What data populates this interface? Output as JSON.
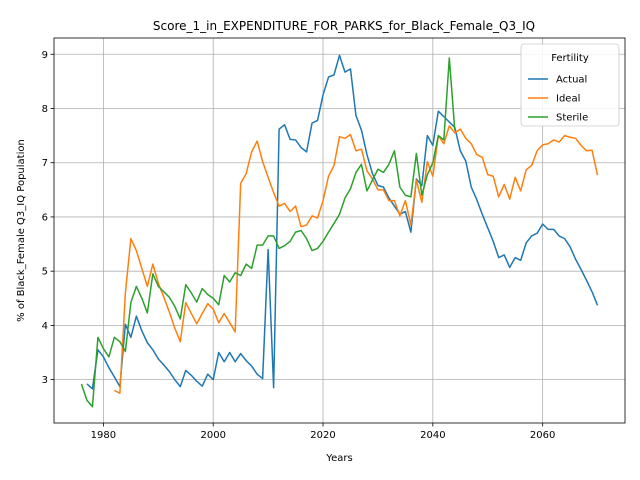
{
  "chart_data": {
    "type": "line",
    "title": "Score_1_in_EXPENDITURE_FOR_PARKS_for_Black_Female_Q3_IQ",
    "xlabel": "Years",
    "ylabel": "% of Black_Female Q3_IQ Population",
    "xlim": [
      1971,
      2075
    ],
    "ylim": [
      2.2,
      9.3
    ],
    "xticks": [
      1980,
      2000,
      2020,
      2040,
      2060
    ],
    "yticks": [
      3,
      4,
      5,
      6,
      7,
      8,
      9
    ],
    "grid": true,
    "legend": {
      "title": "Fertility",
      "placement": "top-right"
    },
    "series": [
      {
        "name": "Actual",
        "color": "#1f77b4",
        "points": [
          [
            1977,
            2.92
          ],
          [
            1978,
            2.83
          ],
          [
            1979,
            3.55
          ],
          [
            1980,
            3.42
          ],
          [
            1981,
            3.22
          ],
          [
            1982,
            3.05
          ],
          [
            1983,
            2.87
          ],
          [
            1984,
            4.02
          ],
          [
            1985,
            3.78
          ],
          [
            1986,
            4.17
          ],
          [
            1987,
            3.9
          ],
          [
            1988,
            3.68
          ],
          [
            1989,
            3.55
          ],
          [
            1990,
            3.38
          ],
          [
            1991,
            3.27
          ],
          [
            1992,
            3.15
          ],
          [
            1993,
            3.0
          ],
          [
            1994,
            2.87
          ],
          [
            1995,
            3.17
          ],
          [
            1996,
            3.08
          ],
          [
            1997,
            2.97
          ],
          [
            1998,
            2.88
          ],
          [
            1999,
            3.1
          ],
          [
            2000,
            3.0
          ],
          [
            2001,
            3.5
          ],
          [
            2002,
            3.33
          ],
          [
            2003,
            3.5
          ],
          [
            2004,
            3.33
          ],
          [
            2005,
            3.48
          ],
          [
            2006,
            3.35
          ],
          [
            2007,
            3.25
          ],
          [
            2008,
            3.1
          ],
          [
            2009,
            3.02
          ],
          [
            2010,
            5.4
          ],
          [
            2011,
            2.85
          ],
          [
            2012,
            7.62
          ],
          [
            2013,
            7.7
          ],
          [
            2014,
            7.43
          ],
          [
            2015,
            7.42
          ],
          [
            2016,
            7.28
          ],
          [
            2017,
            7.2
          ],
          [
            2018,
            7.73
          ],
          [
            2019,
            7.78
          ],
          [
            2020,
            8.25
          ],
          [
            2021,
            8.58
          ],
          [
            2022,
            8.62
          ],
          [
            2023,
            8.98
          ],
          [
            2024,
            8.67
          ],
          [
            2025,
            8.73
          ],
          [
            2026,
            7.87
          ],
          [
            2027,
            7.6
          ],
          [
            2028,
            7.15
          ],
          [
            2029,
            6.8
          ],
          [
            2030,
            6.58
          ],
          [
            2031,
            6.55
          ],
          [
            2032,
            6.35
          ],
          [
            2033,
            6.2
          ],
          [
            2034,
            6.05
          ],
          [
            2035,
            6.1
          ],
          [
            2036,
            5.72
          ],
          [
            2037,
            6.7
          ],
          [
            2038,
            6.58
          ],
          [
            2039,
            7.5
          ],
          [
            2040,
            7.32
          ],
          [
            2041,
            7.95
          ],
          [
            2042,
            7.85
          ],
          [
            2043,
            7.75
          ],
          [
            2044,
            7.65
          ],
          [
            2045,
            7.22
          ],
          [
            2046,
            7.03
          ],
          [
            2047,
            6.55
          ],
          [
            2048,
            6.32
          ],
          [
            2049,
            6.05
          ],
          [
            2050,
            5.8
          ],
          [
            2051,
            5.55
          ],
          [
            2052,
            5.25
          ],
          [
            2053,
            5.3
          ],
          [
            2054,
            5.07
          ],
          [
            2055,
            5.25
          ],
          [
            2056,
            5.2
          ],
          [
            2057,
            5.52
          ],
          [
            2058,
            5.65
          ],
          [
            2059,
            5.7
          ],
          [
            2060,
            5.87
          ],
          [
            2061,
            5.77
          ],
          [
            2062,
            5.77
          ],
          [
            2063,
            5.65
          ],
          [
            2064,
            5.6
          ],
          [
            2065,
            5.45
          ],
          [
            2066,
            5.22
          ],
          [
            2067,
            5.03
          ],
          [
            2068,
            4.83
          ],
          [
            2069,
            4.62
          ],
          [
            2070,
            4.37
          ]
        ]
      },
      {
        "name": "Ideal",
        "color": "#ff7f0e",
        "points": [
          [
            1982,
            2.8
          ],
          [
            1983,
            2.75
          ],
          [
            1984,
            4.6
          ],
          [
            1985,
            5.6
          ],
          [
            1986,
            5.38
          ],
          [
            1987,
            5.05
          ],
          [
            1988,
            4.72
          ],
          [
            1989,
            5.13
          ],
          [
            1990,
            4.78
          ],
          [
            1991,
            4.52
          ],
          [
            1992,
            4.25
          ],
          [
            1993,
            3.95
          ],
          [
            1994,
            3.7
          ],
          [
            1995,
            4.42
          ],
          [
            1996,
            4.22
          ],
          [
            1997,
            4.03
          ],
          [
            1998,
            4.22
          ],
          [
            1999,
            4.4
          ],
          [
            2000,
            4.3
          ],
          [
            2001,
            4.05
          ],
          [
            2002,
            4.22
          ],
          [
            2003,
            4.05
          ],
          [
            2004,
            3.88
          ],
          [
            2005,
            6.62
          ],
          [
            2006,
            6.8
          ],
          [
            2007,
            7.2
          ],
          [
            2008,
            7.4
          ],
          [
            2009,
            7.02
          ],
          [
            2010,
            6.73
          ],
          [
            2011,
            6.45
          ],
          [
            2012,
            6.2
          ],
          [
            2013,
            6.25
          ],
          [
            2014,
            6.1
          ],
          [
            2015,
            6.2
          ],
          [
            2016,
            5.82
          ],
          [
            2017,
            5.85
          ],
          [
            2018,
            6.02
          ],
          [
            2019,
            5.98
          ],
          [
            2020,
            6.3
          ],
          [
            2021,
            6.75
          ],
          [
            2022,
            6.95
          ],
          [
            2023,
            7.48
          ],
          [
            2024,
            7.45
          ],
          [
            2025,
            7.52
          ],
          [
            2026,
            7.22
          ],
          [
            2027,
            7.25
          ],
          [
            2028,
            6.85
          ],
          [
            2029,
            6.7
          ],
          [
            2030,
            6.5
          ],
          [
            2031,
            6.5
          ],
          [
            2032,
            6.3
          ],
          [
            2033,
            6.3
          ],
          [
            2034,
            6.02
          ],
          [
            2035,
            6.3
          ],
          [
            2036,
            5.85
          ],
          [
            2037,
            6.68
          ],
          [
            2038,
            6.27
          ],
          [
            2039,
            7.02
          ],
          [
            2040,
            6.75
          ],
          [
            2041,
            7.5
          ],
          [
            2042,
            7.35
          ],
          [
            2043,
            7.68
          ],
          [
            2044,
            7.55
          ],
          [
            2045,
            7.62
          ],
          [
            2046,
            7.45
          ],
          [
            2047,
            7.35
          ],
          [
            2048,
            7.15
          ],
          [
            2049,
            7.1
          ],
          [
            2050,
            6.78
          ],
          [
            2051,
            6.75
          ],
          [
            2052,
            6.37
          ],
          [
            2053,
            6.6
          ],
          [
            2054,
            6.33
          ],
          [
            2055,
            6.73
          ],
          [
            2056,
            6.48
          ],
          [
            2057,
            6.87
          ],
          [
            2058,
            6.95
          ],
          [
            2059,
            7.22
          ],
          [
            2060,
            7.33
          ],
          [
            2061,
            7.35
          ],
          [
            2062,
            7.42
          ],
          [
            2063,
            7.38
          ],
          [
            2064,
            7.5
          ],
          [
            2065,
            7.47
          ],
          [
            2066,
            7.45
          ],
          [
            2067,
            7.32
          ],
          [
            2068,
            7.22
          ],
          [
            2069,
            7.23
          ],
          [
            2070,
            6.77
          ]
        ]
      },
      {
        "name": "Sterile",
        "color": "#2ca02c",
        "points": [
          [
            1976,
            2.92
          ],
          [
            1977,
            2.62
          ],
          [
            1978,
            2.5
          ],
          [
            1979,
            3.78
          ],
          [
            1980,
            3.57
          ],
          [
            1981,
            3.42
          ],
          [
            1982,
            3.78
          ],
          [
            1983,
            3.7
          ],
          [
            1984,
            3.52
          ],
          [
            1985,
            4.42
          ],
          [
            1986,
            4.72
          ],
          [
            1987,
            4.5
          ],
          [
            1988,
            4.23
          ],
          [
            1989,
            4.95
          ],
          [
            1990,
            4.72
          ],
          [
            1991,
            4.62
          ],
          [
            1992,
            4.52
          ],
          [
            1993,
            4.35
          ],
          [
            1994,
            4.12
          ],
          [
            1995,
            4.75
          ],
          [
            1996,
            4.6
          ],
          [
            1997,
            4.43
          ],
          [
            1998,
            4.68
          ],
          [
            1999,
            4.57
          ],
          [
            2000,
            4.5
          ],
          [
            2001,
            4.38
          ],
          [
            2002,
            4.92
          ],
          [
            2003,
            4.8
          ],
          [
            2004,
            4.97
          ],
          [
            2005,
            4.92
          ],
          [
            2006,
            5.13
          ],
          [
            2007,
            5.05
          ],
          [
            2008,
            5.48
          ],
          [
            2009,
            5.48
          ],
          [
            2010,
            5.65
          ],
          [
            2011,
            5.65
          ],
          [
            2012,
            5.42
          ],
          [
            2013,
            5.47
          ],
          [
            2014,
            5.55
          ],
          [
            2015,
            5.72
          ],
          [
            2016,
            5.75
          ],
          [
            2017,
            5.6
          ],
          [
            2018,
            5.38
          ],
          [
            2019,
            5.42
          ],
          [
            2020,
            5.55
          ],
          [
            2021,
            5.72
          ],
          [
            2022,
            5.88
          ],
          [
            2023,
            6.05
          ],
          [
            2024,
            6.35
          ],
          [
            2025,
            6.52
          ],
          [
            2026,
            6.82
          ],
          [
            2027,
            6.97
          ],
          [
            2028,
            6.48
          ],
          [
            2029,
            6.68
          ],
          [
            2030,
            6.88
          ],
          [
            2031,
            6.82
          ],
          [
            2032,
            6.97
          ],
          [
            2033,
            7.22
          ],
          [
            2034,
            6.55
          ],
          [
            2035,
            6.4
          ],
          [
            2036,
            6.37
          ],
          [
            2037,
            7.17
          ],
          [
            2038,
            6.4
          ],
          [
            2039,
            6.78
          ],
          [
            2040,
            7.0
          ],
          [
            2041,
            7.5
          ],
          [
            2042,
            7.42
          ],
          [
            2043,
            8.93
          ],
          [
            2044,
            7.6
          ]
        ]
      }
    ]
  }
}
